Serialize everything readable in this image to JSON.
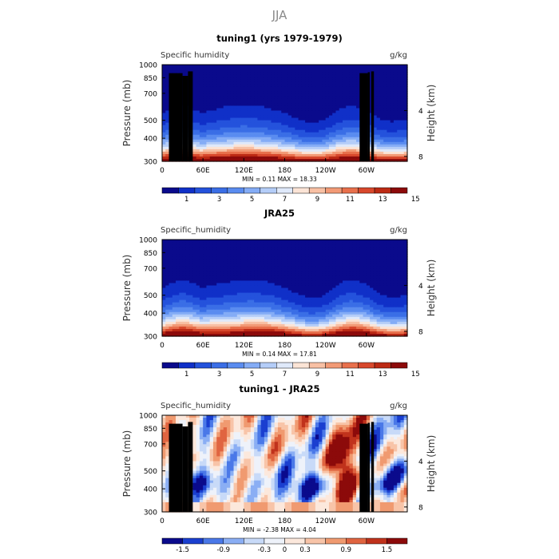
{
  "figure": {
    "title": "JJA"
  },
  "colors": {
    "seq_palette": [
      "#0a0a8c",
      "#1030c8",
      "#2452dc",
      "#3a6ee6",
      "#5a8cf0",
      "#84acf6",
      "#b4cdf8",
      "#dfe9fa",
      "#fbe4d6",
      "#f8c0a4",
      "#f29a76",
      "#e8704c",
      "#d8482c",
      "#bc2a14",
      "#8c0a0a"
    ],
    "div_palette": [
      "#0a0a8c",
      "#1a3fd0",
      "#4a78e8",
      "#8aaef4",
      "#c8daf8",
      "#eef2fa",
      "#fce8dc",
      "#f8c4a8",
      "#f09a70",
      "#e06440",
      "#c0321c",
      "#8c0a0a"
    ],
    "land": "#000000"
  },
  "chart_data": [
    {
      "type": "heatmap",
      "title": "tuning1 (yrs 1979-1979)",
      "left_label": "Specific humidity",
      "right_label": "g/kg",
      "ylabel": "Pressure (mb)",
      "ylabel_right": "Height (km)",
      "x_ticks": [
        "0",
        "60E",
        "120E",
        "180",
        "120W",
        "60W"
      ],
      "x_tick_lon": [
        0,
        60,
        120,
        180,
        240,
        300
      ],
      "xlim": [
        0,
        360
      ],
      "y_ticks": [
        "300",
        "400",
        "500",
        "700",
        "850",
        "1000"
      ],
      "y_tick_p": [
        300,
        400,
        500,
        700,
        850,
        1000
      ],
      "ylim": [
        300,
        1000
      ],
      "height_ticks": [
        "8",
        "4"
      ],
      "height_km": [
        8,
        4
      ],
      "stats": "MIN =    0.11   MAX =   18.33",
      "min": 0.11,
      "max": 18.33,
      "colorbar_labels": [
        "1",
        "3",
        "5",
        "7",
        "9",
        "11",
        "13",
        "15"
      ],
      "colorbar_levels": [
        0,
        1,
        2,
        3,
        4,
        5,
        6,
        7,
        8,
        9,
        10,
        11,
        12,
        13,
        14,
        15,
        16
      ],
      "field": "full",
      "show_land": true
    },
    {
      "type": "heatmap",
      "title": "JRA25",
      "left_label": "Specific_humidity",
      "right_label": "g/kg",
      "ylabel": "Pressure (mb)",
      "ylabel_right": "Height (km)",
      "x_ticks": [
        "0",
        "60E",
        "120E",
        "180",
        "120W",
        "60W"
      ],
      "x_tick_lon": [
        0,
        60,
        120,
        180,
        240,
        300
      ],
      "xlim": [
        0,
        360
      ],
      "y_ticks": [
        "300",
        "400",
        "500",
        "700",
        "850",
        "1000"
      ],
      "y_tick_p": [
        300,
        400,
        500,
        700,
        850,
        1000
      ],
      "ylim": [
        300,
        1000
      ],
      "height_ticks": [
        "8",
        "4"
      ],
      "height_km": [
        8,
        4
      ],
      "stats": "MIN =    0.14   MAX =   17.81",
      "min": 0.14,
      "max": 17.81,
      "colorbar_labels": [
        "1",
        "3",
        "5",
        "7",
        "9",
        "11",
        "13",
        "15"
      ],
      "colorbar_levels": [
        0,
        1,
        2,
        3,
        4,
        5,
        6,
        7,
        8,
        9,
        10,
        11,
        12,
        13,
        14,
        15,
        16
      ],
      "field": "full",
      "show_land": false
    },
    {
      "type": "heatmap",
      "title": "tuning1 - JRA25",
      "left_label": "Specific_humidity",
      "right_label": "g/kg",
      "ylabel": "Pressure (mb)",
      "ylabel_right": "Height (km)",
      "x_ticks": [
        "0",
        "60E",
        "120E",
        "180",
        "120W",
        "60W"
      ],
      "x_tick_lon": [
        0,
        60,
        120,
        180,
        240,
        300
      ],
      "xlim": [
        0,
        360
      ],
      "y_ticks": [
        "300",
        "400",
        "500",
        "700",
        "850",
        "1000"
      ],
      "y_tick_p": [
        300,
        400,
        500,
        700,
        850,
        1000
      ],
      "ylim": [
        300,
        1000
      ],
      "height_ticks": [
        "8",
        "4"
      ],
      "height_km": [
        8,
        4
      ],
      "stats": "MIN =   -2.38   MAX =    4.04",
      "min": -2.38,
      "max": 4.04,
      "colorbar_labels": [
        "-1.5",
        "-0.9",
        "-0.3",
        "0",
        "0.3",
        "0.9",
        "1.5"
      ],
      "colorbar_levels": [
        -2.1,
        -1.5,
        -1.2,
        -0.9,
        -0.6,
        -0.3,
        0,
        0.3,
        0.6,
        0.9,
        1.2,
        1.5,
        2.1
      ],
      "field": "diff",
      "show_land": true
    }
  ]
}
